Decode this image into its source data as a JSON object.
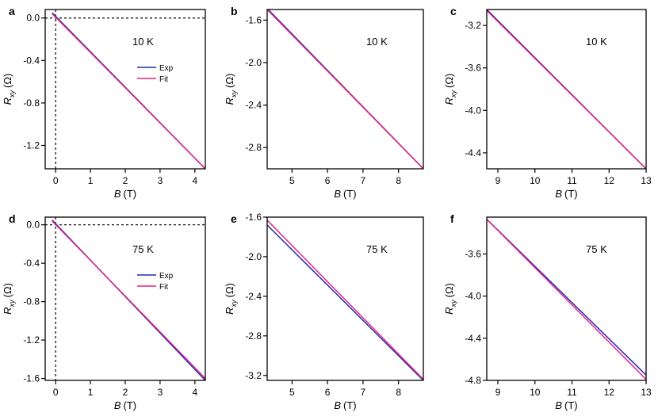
{
  "figure": {
    "colors": {
      "exp": "#1f2bb3",
      "fit": "#e8247f",
      "frame": "#000000",
      "guide": "#000000"
    }
  },
  "chart_data": [
    {
      "panel": "a",
      "type": "line",
      "xlabel": "B",
      "xunit": "(T)",
      "ylabel": "R",
      "ysub": "xy",
      "yunit": "(Ω)",
      "xlim": [
        -0.3,
        4.3
      ],
      "ylim": [
        -1.42,
        0.08
      ],
      "xticks": [
        0,
        1,
        2,
        3,
        4
      ],
      "xtick_labels": [
        "0",
        "1",
        "2",
        "3",
        "4"
      ],
      "yticks": [
        0.0,
        -0.4,
        -0.8,
        -1.2
      ],
      "ytick_labels": [
        "0.0",
        "-0.4",
        "-0.8",
        "-1.2"
      ],
      "annotation": "10 K",
      "legend": {
        "entries": [
          "Exp",
          "Fit"
        ]
      },
      "zero_guides": true,
      "series": [
        {
          "name": "Exp",
          "color": "#1f2bb3",
          "x": [
            -0.1,
            4.3
          ],
          "y": [
            0.05,
            -1.42
          ]
        },
        {
          "name": "Fit",
          "color": "#e8247f",
          "x": [
            -0.1,
            4.3
          ],
          "y": [
            0.04,
            -1.42
          ]
        }
      ]
    },
    {
      "panel": "b",
      "type": "line",
      "xlabel": "B",
      "xunit": "(T)",
      "ylabel": "R",
      "ysub": "xy",
      "yunit": "(Ω)",
      "xlim": [
        4.3,
        8.7
      ],
      "ylim": [
        -3.0,
        -1.5
      ],
      "xticks": [
        5,
        6,
        7,
        8
      ],
      "xtick_labels": [
        "5",
        "6",
        "7",
        "8"
      ],
      "yticks": [
        -1.6,
        -2.0,
        -2.4,
        -2.8
      ],
      "ytick_labels": [
        "-1.6",
        "-2.0",
        "-2.4",
        "-2.8"
      ],
      "annotation": "10 K",
      "zero_guides": false,
      "series": [
        {
          "name": "Exp",
          "color": "#1f2bb3",
          "x": [
            4.3,
            8.7
          ],
          "y": [
            -1.49,
            -3.0
          ]
        },
        {
          "name": "Fit",
          "color": "#e8247f",
          "x": [
            4.3,
            8.7
          ],
          "y": [
            -1.5,
            -3.0
          ]
        }
      ]
    },
    {
      "panel": "c",
      "type": "line",
      "xlabel": "B",
      "xunit": "(T)",
      "ylabel": "R",
      "ysub": "xy",
      "yunit": "(Ω)",
      "xlim": [
        8.7,
        13.0
      ],
      "ylim": [
        -4.55,
        -3.05
      ],
      "xticks": [
        9,
        10,
        11,
        12,
        13
      ],
      "xtick_labels": [
        "9",
        "10",
        "11",
        "12",
        "13"
      ],
      "yticks": [
        -3.2,
        -3.6,
        -4.0,
        -4.4
      ],
      "ytick_labels": [
        "-3.2",
        "-3.6",
        "-4.0",
        "-4.4"
      ],
      "annotation": "10 K",
      "zero_guides": false,
      "series": [
        {
          "name": "Exp",
          "color": "#1f2bb3",
          "x": [
            8.7,
            13.0
          ],
          "y": [
            -3.05,
            -4.55
          ]
        },
        {
          "name": "Fit",
          "color": "#e8247f",
          "x": [
            8.7,
            13.0
          ],
          "y": [
            -3.06,
            -4.55
          ]
        }
      ]
    },
    {
      "panel": "d",
      "type": "line",
      "xlabel": "B",
      "xunit": "(T)",
      "ylabel": "R",
      "ysub": "xy",
      "yunit": "(Ω)",
      "xlim": [
        -0.3,
        4.3
      ],
      "ylim": [
        -1.62,
        0.08
      ],
      "xticks": [
        0,
        1,
        2,
        3,
        4
      ],
      "xtick_labels": [
        "0",
        "1",
        "2",
        "3",
        "4"
      ],
      "yticks": [
        0.0,
        -0.4,
        -0.8,
        -1.2,
        -1.6
      ],
      "ytick_labels": [
        "0.0",
        "-0.4",
        "-0.8",
        "-1.2",
        "-1.6"
      ],
      "annotation": "75 K",
      "legend": {
        "entries": [
          "Exp",
          "Fit"
        ]
      },
      "zero_guides": true,
      "series": [
        {
          "name": "Exp",
          "color": "#1f2bb3",
          "x": [
            -0.1,
            4.3
          ],
          "y": [
            0.05,
            -1.62
          ]
        },
        {
          "name": "Fit",
          "color": "#e8247f",
          "x": [
            -0.1,
            4.3
          ],
          "y": [
            0.04,
            -1.6
          ]
        }
      ]
    },
    {
      "panel": "e",
      "type": "line",
      "xlabel": "B",
      "xunit": "(T)",
      "ylabel": "R",
      "ysub": "xy",
      "yunit": "(Ω)",
      "xlim": [
        4.3,
        8.7
      ],
      "ylim": [
        -3.25,
        -1.6
      ],
      "xticks": [
        5,
        6,
        7,
        8
      ],
      "xtick_labels": [
        "5",
        "6",
        "7",
        "8"
      ],
      "yticks": [
        -1.6,
        -2.0,
        -2.4,
        -2.8,
        -3.2
      ],
      "ytick_labels": [
        "-1.6",
        "-2.0",
        "-2.4",
        "-2.8",
        "-3.2"
      ],
      "annotation": "75 K",
      "zero_guides": false,
      "series": [
        {
          "name": "Exp",
          "color": "#1f2bb3",
          "x": [
            4.3,
            8.7
          ],
          "y": [
            -1.68,
            -3.25
          ]
        },
        {
          "name": "Fit",
          "color": "#e8247f",
          "x": [
            4.3,
            8.7
          ],
          "y": [
            -1.63,
            -3.24
          ]
        }
      ]
    },
    {
      "panel": "f",
      "type": "line",
      "xlabel": "B",
      "xunit": "(T)",
      "ylabel": "R",
      "ysub": "xy",
      "yunit": "(Ω)",
      "xlim": [
        8.7,
        13.0
      ],
      "ylim": [
        -4.8,
        -3.25
      ],
      "xticks": [
        9,
        10,
        11,
        12,
        13
      ],
      "xtick_labels": [
        "9",
        "10",
        "11",
        "12",
        "13"
      ],
      "yticks": [
        -3.6,
        -4.0,
        -4.4,
        -4.8
      ],
      "ytick_labels": [
        "-3.6",
        "-4.0",
        "-4.4",
        "-4.8"
      ],
      "annotation": "75 K",
      "zero_guides": false,
      "series": [
        {
          "name": "Exp",
          "color": "#1f2bb3",
          "x": [
            8.7,
            13.0
          ],
          "y": [
            -3.27,
            -4.75
          ]
        },
        {
          "name": "Fit",
          "color": "#e8247f",
          "x": [
            8.7,
            13.0
          ],
          "y": [
            -3.27,
            -4.79
          ]
        }
      ]
    }
  ]
}
